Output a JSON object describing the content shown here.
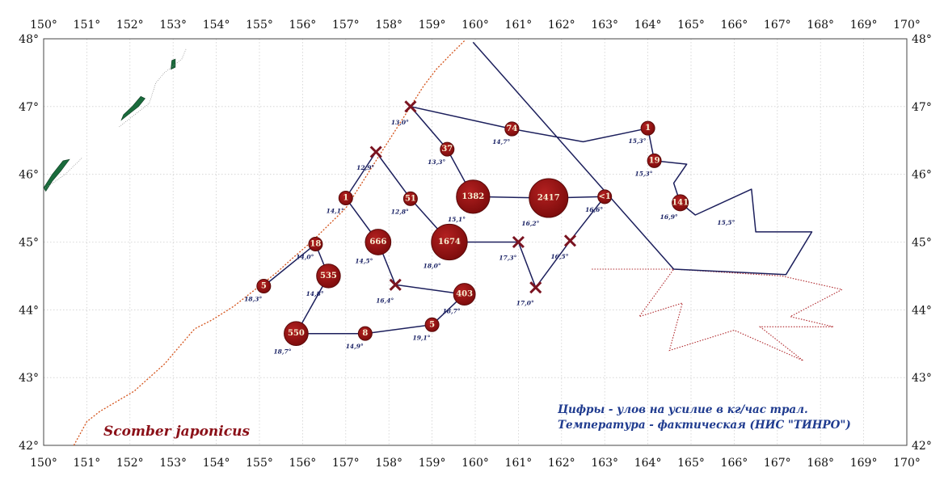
{
  "map": {
    "species_label": "Scomber japonicus",
    "legend_lines": [
      "Цифры - улов на усилие в кг/час трал.",
      "Температура - фактическая (НИС \"ТИНРО\")"
    ],
    "lon_labels": [
      "150°",
      "151°",
      "152°",
      "153°",
      "154°",
      "155°",
      "156°",
      "157°",
      "158°",
      "159°",
      "160°",
      "161°",
      "162°",
      "163°",
      "164°",
      "165°",
      "166°",
      "167°",
      "168°",
      "169°",
      "170°"
    ],
    "lat_labels": [
      "42°",
      "43°",
      "44°",
      "45°",
      "46°",
      "47°",
      "48°"
    ],
    "colors": {
      "station_fill": "#8f1111",
      "station_stroke": "#5a0a0a",
      "route_line": "#1c1f5c",
      "cross": "#7a1320",
      "boundary_dotted": "#b0282c",
      "coast_dotted": "#d4531b",
      "land": "#1a6b3c",
      "grid": "#cfcfcf"
    },
    "stations": [
      {
        "lon": 155.1,
        "lat": 44.35,
        "value": "5",
        "temp": "18,3°"
      },
      {
        "lon": 156.3,
        "lat": 44.97,
        "value": "18",
        "temp": "14,0°"
      },
      {
        "lon": 156.6,
        "lat": 44.5,
        "value": "535",
        "temp": "14,8°"
      },
      {
        "lon": 155.85,
        "lat": 43.65,
        "value": "550",
        "temp": "18,7°"
      },
      {
        "lon": 157.45,
        "lat": 43.65,
        "value": "8",
        "temp": "14,9°"
      },
      {
        "lon": 159.0,
        "lat": 43.78,
        "value": "5",
        "temp": "19,1°"
      },
      {
        "lon": 157.0,
        "lat": 45.65,
        "value": "1",
        "temp": "14,1°"
      },
      {
        "lon": 157.75,
        "lat": 45.0,
        "value": "666",
        "temp": "14,5°"
      },
      {
        "lon": 158.5,
        "lat": 45.64,
        "value": "51",
        "temp": "12,8°"
      },
      {
        "lon": 159.35,
        "lat": 46.37,
        "value": "37",
        "temp": "13,3°"
      },
      {
        "lon": 159.4,
        "lat": 45.0,
        "value": "1674",
        "temp": "18,0°"
      },
      {
        "lon": 159.95,
        "lat": 45.67,
        "value": "1382",
        "temp": "15,1°"
      },
      {
        "lon": 159.75,
        "lat": 44.23,
        "value": "403",
        "temp": "18,7°"
      },
      {
        "lon": 160.85,
        "lat": 46.67,
        "value": "74",
        "temp": "14,7°"
      },
      {
        "lon": 161.7,
        "lat": 45.65,
        "value": "2417",
        "temp": "16,2°"
      },
      {
        "lon": 163.0,
        "lat": 45.67,
        "value": "<1",
        "temp": "16,6°"
      },
      {
        "lon": 164.0,
        "lat": 46.68,
        "value": "1",
        "temp": "15,3°"
      },
      {
        "lon": 164.15,
        "lat": 46.2,
        "value": "19",
        "temp": "15,3°"
      },
      {
        "lon": 164.75,
        "lat": 45.58,
        "value": "141",
        "temp": "16,9°"
      }
    ],
    "empty_stations": [
      {
        "lon": 158.5,
        "lat": 47.0,
        "temp": "13,0°"
      },
      {
        "lon": 157.7,
        "lat": 46.33,
        "temp": "12,9°"
      },
      {
        "lon": 158.15,
        "lat": 44.37,
        "temp": "16,4°"
      },
      {
        "lon": 161.0,
        "lat": 45.0,
        "temp": "17,3°"
      },
      {
        "lon": 162.2,
        "lat": 45.02,
        "temp": "16,5°"
      },
      {
        "lon": 161.4,
        "lat": 44.33,
        "temp": "17,0°"
      }
    ],
    "extra_temps": [
      {
        "lon": 166.0,
        "lat": 45.45,
        "temp": "15,5°"
      }
    ]
  }
}
